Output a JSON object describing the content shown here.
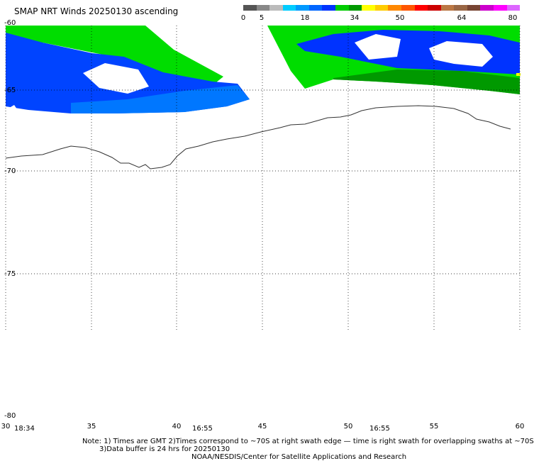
{
  "title": "SMAP NRT Winds 20250130 ascending",
  "colorbar": {
    "labels": [
      "0",
      "5",
      "18",
      "34",
      "50",
      "64",
      "80"
    ],
    "colors": [
      "#555555",
      "#888888",
      "#bbbbbb",
      "#00ccff",
      "#0099ff",
      "#0066ff",
      "#0033ff",
      "#00cc00",
      "#009900",
      "#ffff00",
      "#ffcc00",
      "#ff8800",
      "#ff5500",
      "#ff0000",
      "#cc0000",
      "#bb7744",
      "#996644",
      "#774433",
      "#cc00cc",
      "#ff00ff",
      "#dd66ff"
    ]
  },
  "map": {
    "lat_labels": [
      "-60",
      "-65",
      "-70",
      "-75",
      "-80"
    ],
    "lon_labels": [
      "30",
      "35",
      "40",
      "45",
      "50",
      "55",
      "60"
    ],
    "time_labels": [
      "18:34",
      "16:55",
      "16:55"
    ]
  },
  "notes": {
    "line1": "Note: 1) Times are GMT 2)Times correspond to ~70S at right swath edge — time is right swath for overlapping swaths at ~70S",
    "line2": "3)Data buffer is 24 hrs for 20250130",
    "line3": "NOAA/NESDIS/Center for Satellite Applications and Research"
  }
}
